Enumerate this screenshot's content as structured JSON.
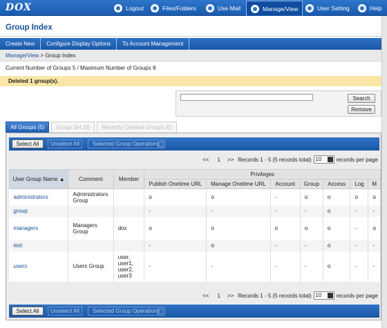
{
  "topbar": {
    "logo": "DOX",
    "nav": [
      {
        "label": "Logout"
      },
      {
        "label": "Files/Folders"
      },
      {
        "label": "Use Mail"
      },
      {
        "label": "Manage/View"
      },
      {
        "label": "User Setting"
      },
      {
        "label": "Help"
      }
    ]
  },
  "page_title": "Group Index",
  "menu": [
    "Create New",
    "Configure Display Options",
    "To Account Management"
  ],
  "breadcrumb": {
    "link": "Manage/View",
    "separator": " > ",
    "current": "Group Index"
  },
  "group_count": "Current Number of Groups 5 / Maximum Number of Groups 8",
  "notice": "Deleted 1 group(s).",
  "search": {
    "value": "",
    "search_label": "Search",
    "remove_label": "Remove"
  },
  "tabs": [
    "All Groups (5)",
    "Group Set (0)",
    "Recently Created Groups (0)"
  ],
  "ops": {
    "select_all": "Select All",
    "unselect_all": "Unselect All",
    "group_ops": "Selected Group Operations"
  },
  "pager": {
    "prev": "<<",
    "page": "1",
    "next": ">>",
    "records": "Records 1 - 5 (5 records total)",
    "per_page_value": "10",
    "per_page_label": "records per page"
  },
  "table": {
    "group_header": "Privileges",
    "headers": [
      "User Group Name",
      "Comment",
      "Member",
      "Publish Onetime URL",
      "Manage Onetime URL",
      "Account",
      "Group",
      "Access",
      "Log",
      "M"
    ],
    "sort_indicator": "▲",
    "rows": [
      [
        "administrators",
        "Administrators Group",
        "",
        "o",
        "o",
        "-",
        "o",
        "o",
        "o",
        "o"
      ],
      [
        "group",
        "",
        "",
        "-",
        "-",
        "-",
        "-",
        "o",
        "-",
        "-"
      ],
      [
        "managers",
        "Managers Group",
        "dox",
        "o",
        "o",
        "o",
        "o",
        "o",
        "-",
        "o"
      ],
      [
        "test",
        "",
        "",
        "-",
        "o",
        "-",
        "-",
        "o",
        "-",
        "-"
      ],
      [
        "users",
        "Users Group",
        "user, user1, user2, user3",
        "-",
        "-",
        "-",
        "-",
        "o",
        "-",
        "-"
      ]
    ]
  }
}
